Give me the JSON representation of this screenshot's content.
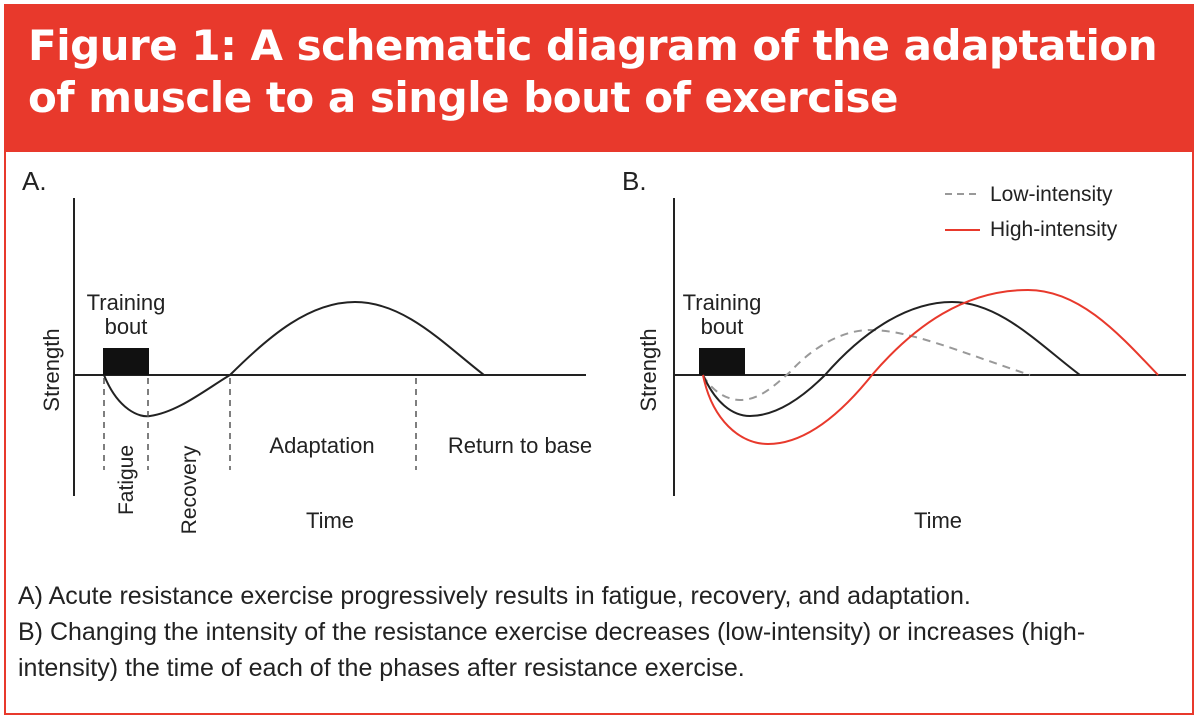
{
  "title": "Figure 1: A schematic diagram of the adaptation of muscle to a single bout of exercise",
  "panel_a": {
    "label": "A.",
    "y_label": "Strength",
    "x_label": "Time",
    "bout_label_line1": "Training",
    "bout_label_line2": "bout",
    "phases": {
      "fatigue": "Fatigue",
      "recovery": "Recovery",
      "adaptation": "Adaptation",
      "return": "Return to base"
    }
  },
  "panel_b": {
    "label": "B.",
    "y_label": "Strength",
    "x_label": "Time",
    "bout_label_line1": "Training",
    "bout_label_line2": "bout",
    "legend": {
      "low": "Low-intensity",
      "high": "High-intensity"
    }
  },
  "colors": {
    "accent": "#e8392c",
    "curve": "#222222",
    "low_intensity": "#999999",
    "high_intensity": "#e8392c"
  },
  "caption": {
    "line_a": "A) Acute resistance exercise progressively results in fatigue, recovery, and adaptation.",
    "line_b": "B) Changing the intensity of the resistance exercise decreases (low-intensity) or increases (high-intensity) the time of each of the phases after resistance exercise."
  }
}
